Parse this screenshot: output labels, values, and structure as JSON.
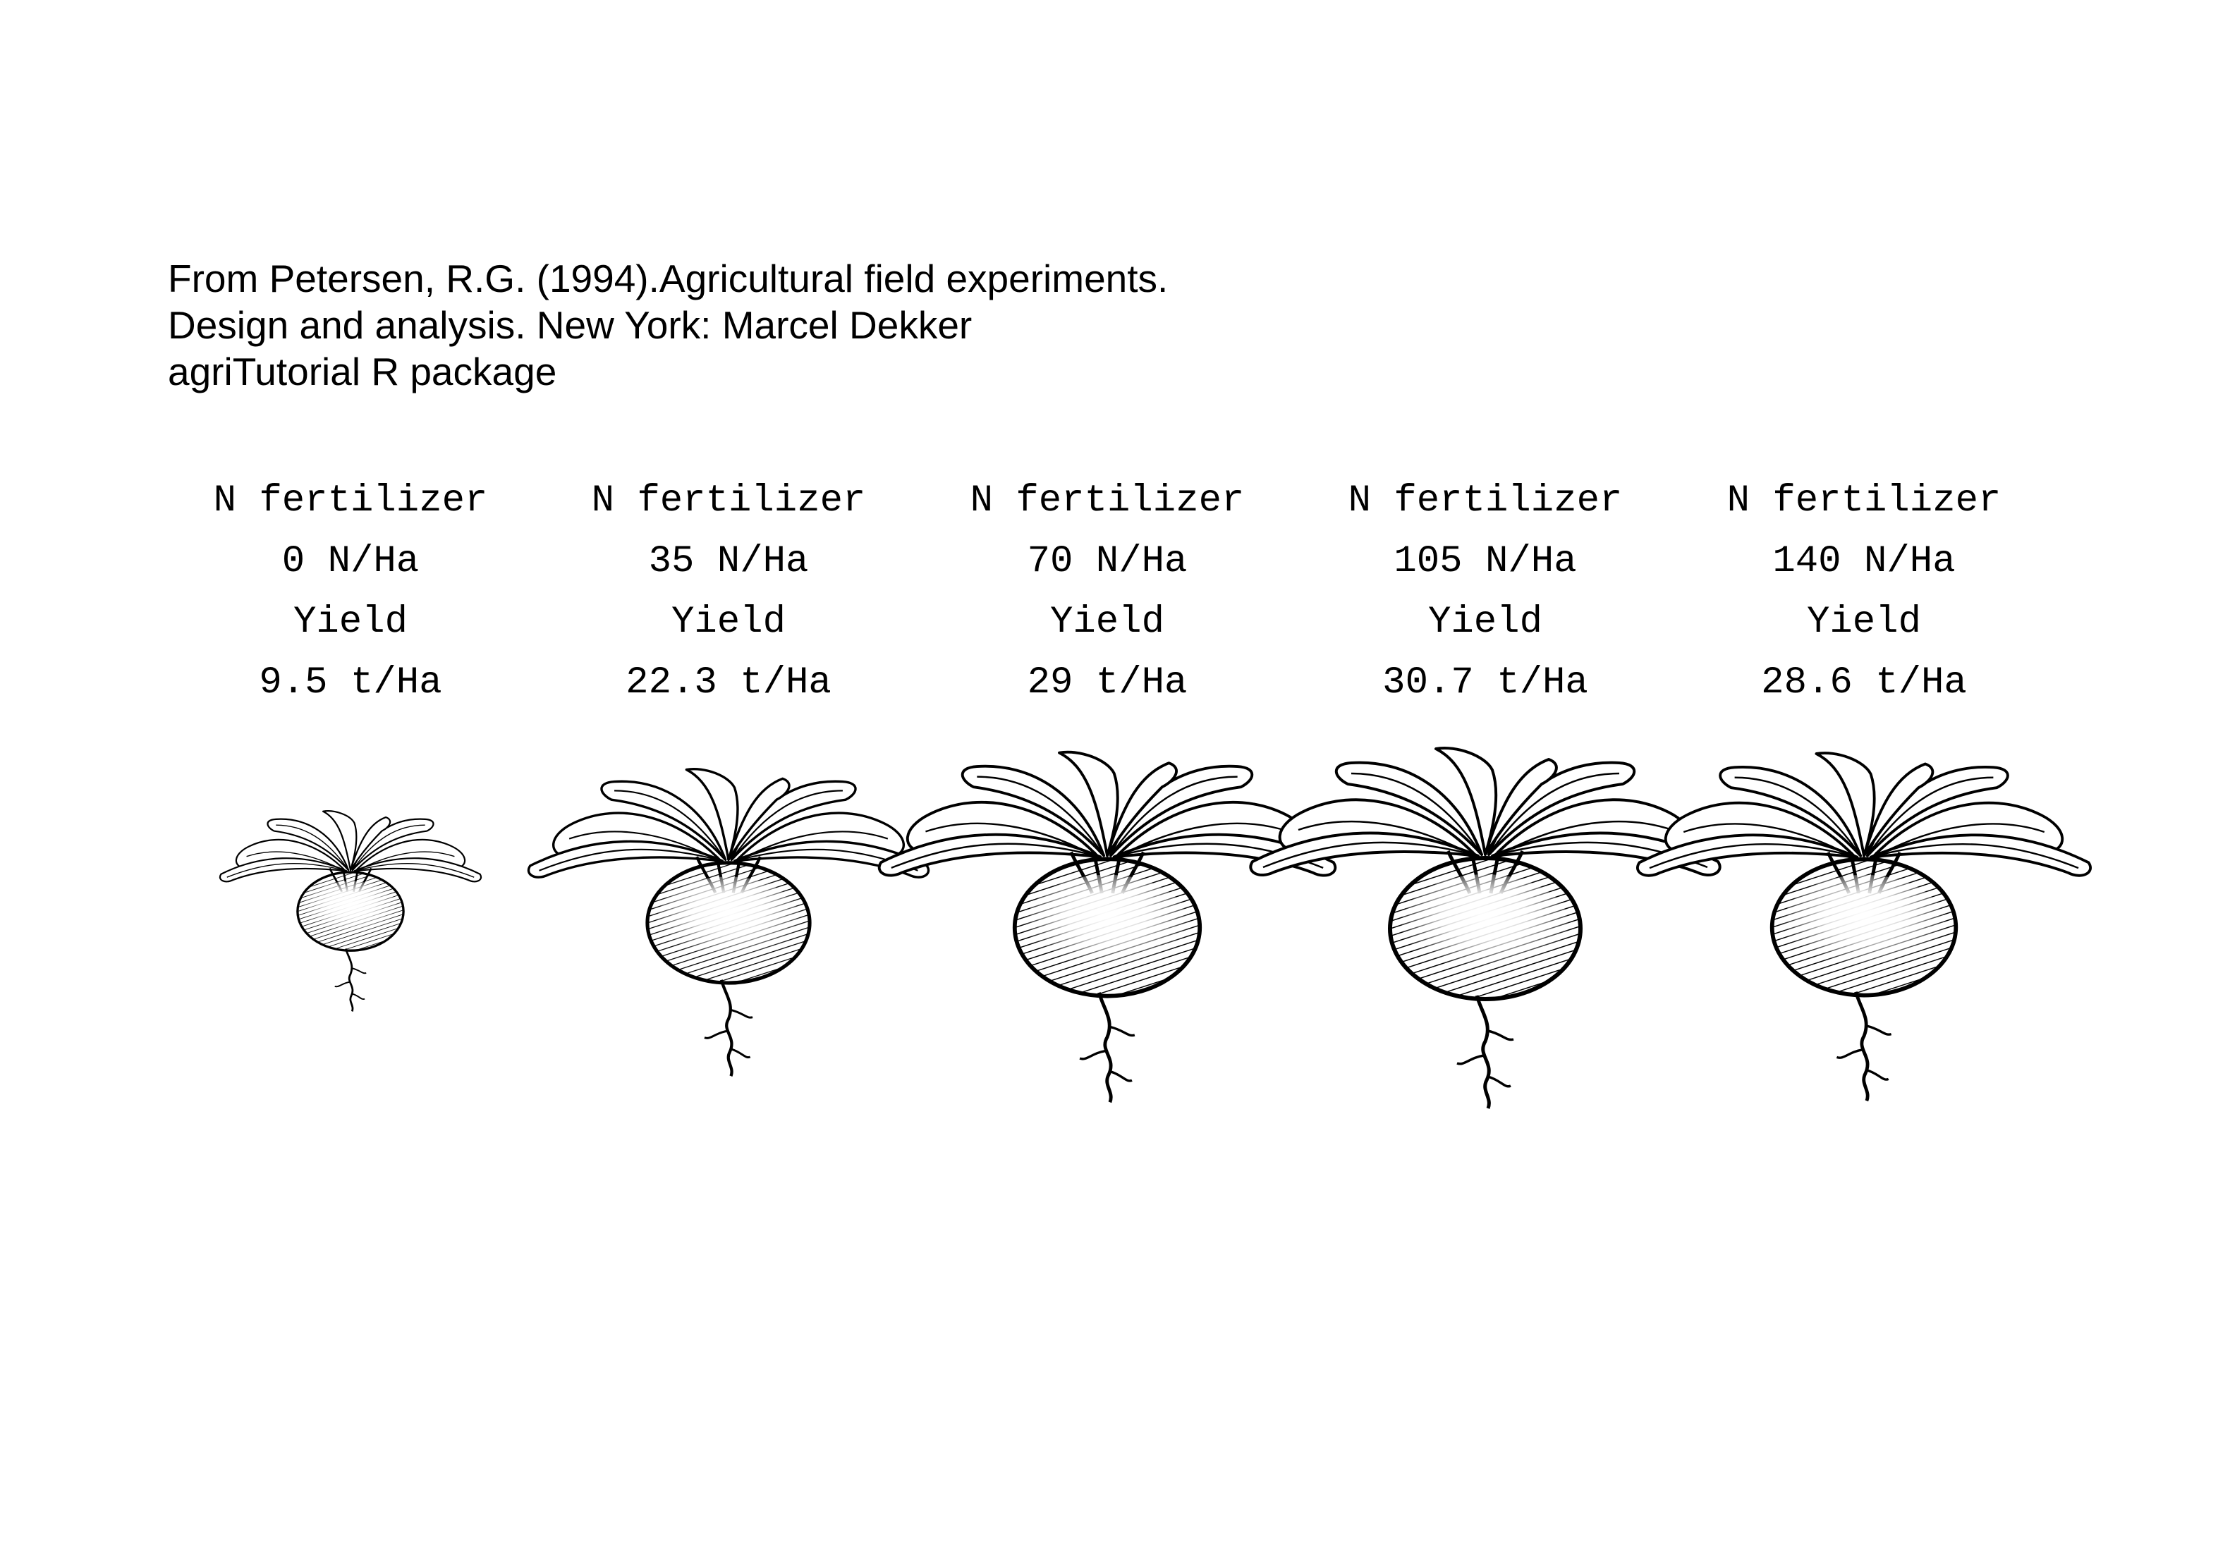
{
  "source": {
    "lines": [
      "From Petersen, R.G. (1994).Agricultural field experiments.",
      "Design and analysis. New York: Marcel Dekker",
      "agriTutorial R package"
    ]
  },
  "chart_data": {
    "type": "pictograph",
    "series_name": "Yield",
    "pictogram": "beet-icon",
    "categories_heading": "N fertilizer",
    "points": [
      {
        "heading": "N fertilizer",
        "dose": "0 N/Ha",
        "yield_label": "Yield",
        "yield_text": "9.5 t/Ha",
        "n_rate": 0,
        "yield": 9.5
      },
      {
        "heading": "N fertilizer",
        "dose": "35 N/Ha",
        "yield_label": "Yield",
        "yield_text": "22.3 t/Ha",
        "n_rate": 35,
        "yield": 22.3
      },
      {
        "heading": "N fertilizer",
        "dose": "70 N/Ha",
        "yield_label": "Yield",
        "yield_text": "29 t/Ha",
        "n_rate": 70,
        "yield": 29
      },
      {
        "heading": "N fertilizer",
        "dose": "105 N/Ha",
        "yield_label": "Yield",
        "yield_text": "30.7 t/Ha",
        "n_rate": 105,
        "yield": 30.7
      },
      {
        "heading": "N fertilizer",
        "dose": "140 N/Ha",
        "yield_label": "Yield",
        "yield_text": "28.6 t/Ha",
        "n_rate": 140,
        "yield": 28.6
      }
    ],
    "ink_color": "#000000",
    "background": "#ffffff"
  }
}
